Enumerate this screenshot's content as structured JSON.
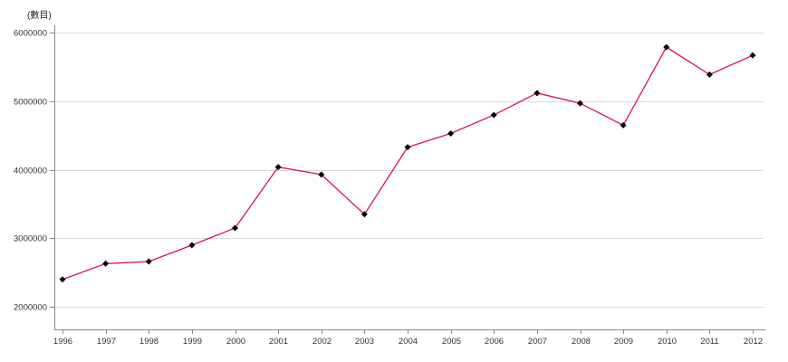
{
  "page": {
    "background": "#ffffff"
  },
  "chart_data": {
    "type": "line",
    "title": "",
    "unit_label": "(數目)",
    "x": [
      1996,
      1997,
      1998,
      1999,
      2000,
      2001,
      2002,
      2003,
      2004,
      2005,
      2006,
      2007,
      2008,
      2009,
      2010,
      2011,
      2012
    ],
    "series": [
      {
        "name": "數目",
        "color": "#dc143c",
        "marker": "diamond",
        "marker_color": "#000000",
        "values": [
          2400000,
          2630000,
          2660000,
          2900000,
          3150000,
          4040000,
          3930000,
          3350000,
          4330000,
          4530000,
          4800000,
          5120000,
          4970000,
          4650000,
          5790000,
          5390000,
          5670000
        ]
      }
    ],
    "xlabel": "",
    "ylabel": "",
    "ylim": [
      2000000,
      6000000
    ],
    "yticks": [
      2000000,
      3000000,
      4000000,
      5000000,
      6000000
    ],
    "grid": "horizontal",
    "legend": "none",
    "colors": {
      "axis": "#888888",
      "gridline": "#d9d9d9",
      "tick_text": "#333333"
    }
  }
}
